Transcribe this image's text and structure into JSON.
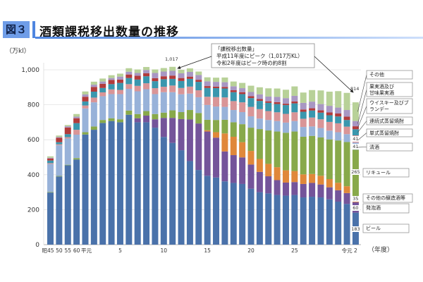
{
  "header": {
    "figure_label": "図３",
    "title": "酒類課税移出数量の推移"
  },
  "chart_data": {
    "type": "bar",
    "stacked": true,
    "title": "酒類課税移出数量の推移",
    "ylabel": "（万kl）",
    "xlabel": "（年度）",
    "ylim": [
      0,
      1000
    ],
    "y_ticks": [
      "0",
      "200",
      "400",
      "600",
      "800",
      "1,000"
    ],
    "grid": true,
    "categories": [
      "昭45",
      "昭50",
      "昭55",
      "昭60",
      "平元",
      "平2",
      "平3",
      "平4",
      "平5",
      "平6",
      "平7",
      "平8",
      "平9",
      "平10",
      "平11",
      "平12",
      "平13",
      "平14",
      "平15",
      "平16",
      "平17",
      "平18",
      "平19",
      "平20",
      "平21",
      "平22",
      "平23",
      "平24",
      "平25",
      "平26",
      "平27",
      "平28",
      "平29",
      "平30",
      "令元",
      "令2"
    ],
    "x_tick_labels": [
      {
        "index": 0,
        "label": "昭45"
      },
      {
        "index": 1,
        "label": "50"
      },
      {
        "index": 2,
        "label": "55"
      },
      {
        "index": 3,
        "label": "60"
      },
      {
        "index": 4,
        "label": "平元"
      },
      {
        "index": 8,
        "label": "5"
      },
      {
        "index": 13,
        "label": "10"
      },
      {
        "index": 18,
        "label": "15"
      },
      {
        "index": 23,
        "label": "20"
      },
      {
        "index": 28,
        "label": "25"
      },
      {
        "index": 34,
        "label": "令元"
      },
      {
        "index": 35,
        "label": "2"
      }
    ],
    "series": [
      {
        "name": "ビール",
        "color": "#4a72aa",
        "values": [
          298,
          390,
          454,
          487,
          630,
          657,
          696,
          707,
          700,
          743,
          700,
          700,
          669,
          616,
          582,
          540,
          478,
          427,
          394,
          384,
          362,
          353,
          347,
          320,
          300,
          293,
          284,
          280,
          284,
          270,
          274,
          270,
          259,
          246,
          233,
          183
        ]
      },
      {
        "name": "発泡酒",
        "color": "#74549a",
        "values": [
          0,
          0,
          0,
          0,
          0,
          0,
          0,
          0,
          0,
          0,
          23,
          38,
          48,
          109,
          143,
          178,
          238,
          266,
          253,
          228,
          171,
          159,
          152,
          138,
          116,
          98,
          85,
          75,
          74,
          77,
          79,
          74,
          69,
          65,
          62,
          60
        ]
      },
      {
        "name": "その他の醸造酒等",
        "color": "#e0883a",
        "values": [
          0,
          0,
          0,
          0,
          0,
          0,
          0,
          0,
          0,
          0,
          0,
          0,
          0,
          0,
          0,
          0,
          0,
          0,
          7,
          31,
          103,
          105,
          87,
          78,
          74,
          71,
          74,
          70,
          63,
          55,
          51,
          50,
          47,
          43,
          39,
          35
        ]
      },
      {
        "name": "リキュール",
        "color": "#88a94a",
        "values": [
          3,
          3,
          3,
          8,
          13,
          19,
          17,
          16,
          17,
          24,
          24,
          26,
          30,
          30,
          43,
          40,
          54,
          60,
          60,
          70,
          78,
          83,
          103,
          133,
          171,
          191,
          204,
          215,
          226,
          215,
          218,
          219,
          227,
          242,
          253,
          265
        ]
      },
      {
        "name": "清酒",
        "color": "#98b2d9",
        "values": [
          160,
          175,
          150,
          134,
          136,
          138,
          136,
          138,
          144,
          124,
          130,
          125,
          114,
          117,
          104,
          102,
          94,
          90,
          85,
          77,
          74,
          70,
          69,
          65,
          60,
          60,
          60,
          58,
          60,
          56,
          54,
          54,
          50,
          47,
          45,
          41
        ]
      },
      {
        "name": "単式蒸留焼酎",
        "color": "#d99597",
        "values": [
          5,
          6,
          8,
          28,
          17,
          27,
          22,
          27,
          24,
          27,
          31,
          34,
          34,
          31,
          38,
          36,
          40,
          40,
          47,
          54,
          54,
          51,
          56,
          54,
          54,
          51,
          50,
          50,
          50,
          47,
          51,
          50,
          50,
          51,
          43,
          41
        ]
      },
      {
        "name": "連続式蒸留焼酎",
        "color": "#3a97ae",
        "values": [
          15,
          12,
          17,
          38,
          23,
          34,
          25,
          30,
          40,
          35,
          36,
          40,
          40,
          43,
          38,
          40,
          44,
          48,
          50,
          51,
          51,
          51,
          47,
          50,
          47,
          47,
          47,
          50,
          51,
          40,
          40,
          38,
          38,
          39,
          38,
          35
        ]
      },
      {
        "name": "ウイスキー及びブランデー",
        "color": "#b23b3b",
        "values": [
          12,
          25,
          38,
          28,
          27,
          27,
          24,
          24,
          19,
          20,
          22,
          17,
          17,
          17,
          19,
          17,
          13,
          12,
          11,
          9,
          9,
          11,
          11,
          11,
          11,
          9,
          11,
          8,
          11,
          13,
          13,
          13,
          16,
          17,
          19,
          17
        ]
      },
      {
        "name": "果実酒及び甘味果実酒",
        "color": "#a897c3",
        "values": [
          4,
          5,
          7,
          9,
          13,
          13,
          13,
          11,
          17,
          16,
          16,
          19,
          30,
          27,
          27,
          27,
          27,
          27,
          27,
          27,
          27,
          23,
          23,
          24,
          27,
          27,
          30,
          32,
          32,
          38,
          38,
          36,
          38,
          34,
          38,
          30
        ]
      },
      {
        "name": "その他",
        "color": "#b8d198",
        "values": [
          8,
          8,
          7,
          15,
          17,
          17,
          17,
          16,
          17,
          20,
          20,
          17,
          20,
          20,
          23,
          20,
          20,
          20,
          23,
          24,
          27,
          27,
          30,
          36,
          40,
          47,
          48,
          48,
          54,
          59,
          66,
          78,
          81,
          94,
          98,
          107
        ]
      }
    ],
    "legend": {
      "placement": "right",
      "entries": [
        "その他",
        "果実酒及び\n甘味果実酒",
        "ウイスキー及びブ\nランデー",
        "連続式蒸留焼酎",
        "単式蒸留焼酎",
        "清酒",
        "リキュール",
        "その他の醸造酒等",
        "発泡酒",
        "ビール"
      ]
    },
    "data_labels": {
      "peak": "1,017",
      "latest_total": "814",
      "latest": {
        "sake": "41",
        "single_shochu": "41",
        "liqueur": "265",
        "other_brewed": "35",
        "happoshu": "60",
        "beer": "183"
      }
    },
    "annotation": {
      "lines": [
        "「課税移出数量」",
        "平成11年度にピーク（1,017万KL）",
        "令和2年度はピーク時の約8割"
      ]
    }
  }
}
